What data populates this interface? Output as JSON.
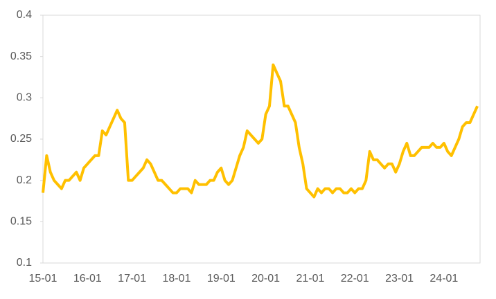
{
  "chart_data": {
    "type": "line",
    "categories": [
      "15-01",
      null,
      null,
      null,
      null,
      null,
      null,
      null,
      null,
      null,
      null,
      null,
      "16-01",
      null,
      null,
      null,
      null,
      null,
      null,
      null,
      null,
      null,
      null,
      null,
      "17-01",
      null,
      null,
      null,
      null,
      null,
      null,
      null,
      null,
      null,
      null,
      null,
      "18-01",
      null,
      null,
      null,
      null,
      null,
      null,
      null,
      null,
      null,
      null,
      null,
      "19-01",
      null,
      null,
      null,
      null,
      null,
      null,
      null,
      null,
      null,
      null,
      null,
      "20-01",
      null,
      null,
      null,
      null,
      null,
      null,
      null,
      null,
      null,
      null,
      null,
      "21-01",
      null,
      null,
      null,
      null,
      null,
      null,
      null,
      null,
      null,
      null,
      null,
      "22-01",
      null,
      null,
      null,
      null,
      null,
      null,
      null,
      null,
      null,
      null,
      null,
      "23-01",
      null,
      null,
      null,
      null,
      null,
      null,
      null,
      null,
      null,
      null,
      null,
      "24-01",
      null,
      null,
      null,
      null,
      null,
      null,
      null,
      null,
      null
    ],
    "values": [
      0.185,
      0.23,
      0.21,
      0.2,
      0.195,
      0.19,
      0.2,
      0.2,
      0.205,
      0.21,
      0.2,
      0.215,
      0.22,
      0.225,
      0.23,
      0.23,
      0.26,
      0.255,
      0.265,
      0.275,
      0.285,
      0.275,
      0.27,
      0.2,
      0.2,
      0.205,
      0.21,
      0.215,
      0.225,
      0.22,
      0.21,
      0.2,
      0.2,
      0.195,
      0.19,
      0.185,
      0.185,
      0.19,
      0.19,
      0.19,
      0.185,
      0.2,
      0.195,
      0.195,
      0.195,
      0.2,
      0.2,
      0.21,
      0.215,
      0.2,
      0.195,
      0.2,
      0.215,
      0.23,
      0.24,
      0.26,
      0.255,
      0.25,
      0.245,
      0.25,
      0.28,
      0.29,
      0.34,
      0.33,
      0.32,
      0.29,
      0.29,
      0.28,
      0.27,
      0.24,
      0.22,
      0.19,
      0.185,
      0.18,
      0.19,
      0.185,
      0.19,
      0.19,
      0.185,
      0.19,
      0.19,
      0.185,
      0.185,
      0.19,
      0.185,
      0.19,
      0.19,
      0.2,
      0.235,
      0.225,
      0.225,
      0.22,
      0.215,
      0.22,
      0.22,
      0.21,
      0.22,
      0.235,
      0.245,
      0.23,
      0.23,
      0.235,
      0.24,
      0.24,
      0.24,
      0.245,
      0.24,
      0.24,
      0.245,
      0.235,
      0.23,
      0.24,
      0.25,
      0.265,
      0.27,
      0.27,
      0.28,
      0.29
    ],
    "color": "#ffc000",
    "ylim": [
      0.1,
      0.4
    ],
    "yticks": [
      0.1,
      0.15,
      0.2,
      0.25,
      0.3,
      0.35,
      0.4
    ],
    "grid": false
  }
}
